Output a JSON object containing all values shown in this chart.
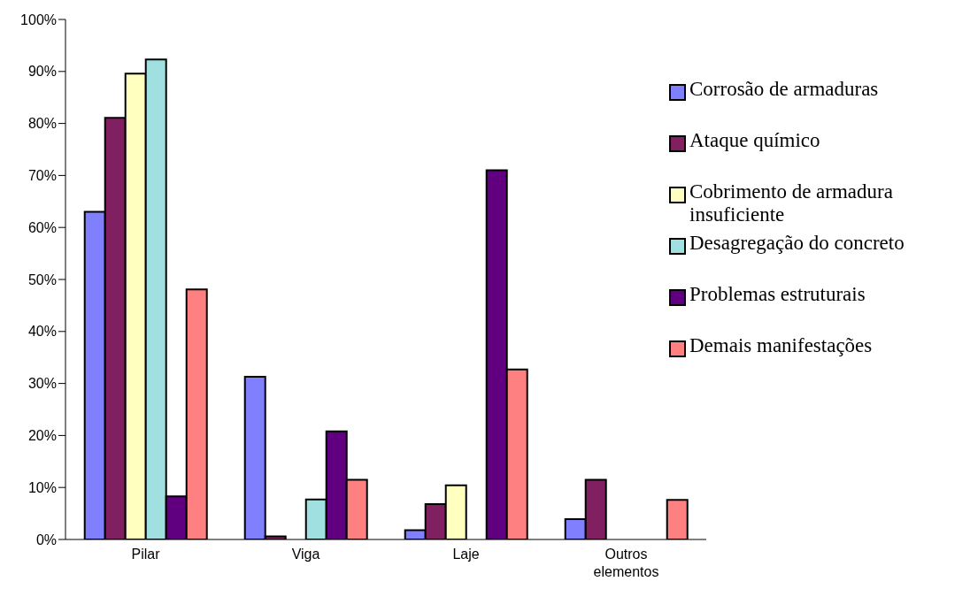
{
  "chart_data": {
    "type": "bar",
    "categories": [
      "Pilar",
      "Viga",
      "Laje",
      "Outros elementos"
    ],
    "series": [
      {
        "name": "Corrosão de armaduras",
        "color": "#8080ff",
        "values": [
          63.0,
          31.3,
          1.8,
          3.9
        ]
      },
      {
        "name": "Ataque químico",
        "color": "#802060",
        "values": [
          81.1,
          0.6,
          6.8,
          11.5
        ]
      },
      {
        "name": "Cobrimento de armadura insuficiente",
        "color": "#ffffc0",
        "values": [
          89.6,
          0,
          10.4,
          0
        ]
      },
      {
        "name": "Desagregação do concreto",
        "color": "#a0e0e0",
        "values": [
          92.3,
          7.7,
          0,
          0
        ]
      },
      {
        "name": "Problemas estruturais",
        "color": "#600080",
        "values": [
          8.3,
          20.8,
          71.0,
          0
        ]
      },
      {
        "name": "Demais manifestações",
        "color": "#ff8080",
        "values": [
          48.1,
          11.5,
          32.7,
          7.6
        ]
      }
    ],
    "ylim": [
      0,
      100
    ],
    "yticks": [
      {
        "value": 0,
        "label": "0%"
      },
      {
        "value": 10,
        "label": "10%"
      },
      {
        "value": 20,
        "label": "20%"
      },
      {
        "value": 30,
        "label": "30%"
      },
      {
        "value": 40,
        "label": "40%"
      },
      {
        "value": 50,
        "label": "50%"
      },
      {
        "value": 60,
        "label": "60%"
      },
      {
        "value": 70,
        "label": "70%"
      },
      {
        "value": 80,
        "label": "80%"
      },
      {
        "value": 90,
        "label": "90%"
      },
      {
        "value": 100,
        "label": "100%"
      }
    ],
    "grid": false,
    "legend": "right"
  }
}
